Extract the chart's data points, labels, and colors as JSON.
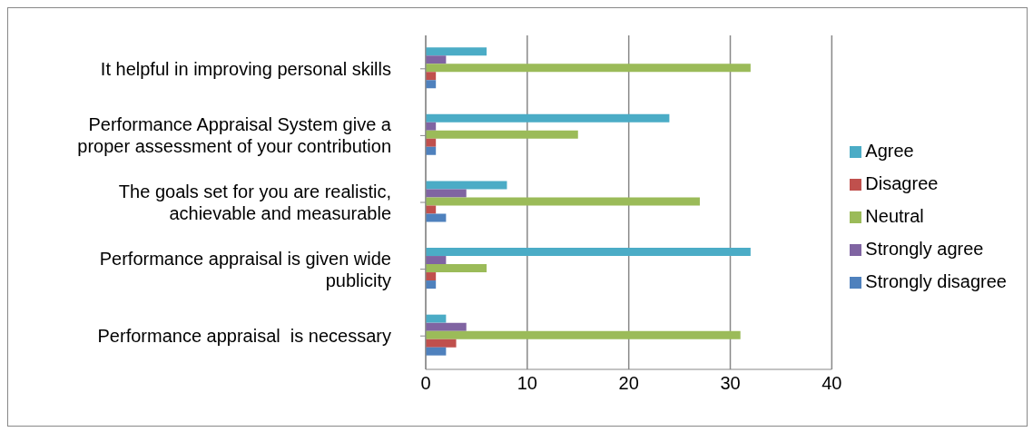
{
  "chart_data": {
    "type": "bar",
    "orientation": "horizontal",
    "categories": [
      "It helpful in improving personal skills",
      "Performance Appraisal System give a proper assessment of your contribution",
      "The goals set for you are realistic, achievable and measurable",
      "Performance appraisal is given wide publicity",
      "Performance appraisal  is necessary"
    ],
    "series": [
      {
        "name": "Agree",
        "color": "#4bacc6",
        "values": [
          6,
          24,
          8,
          32,
          2
        ]
      },
      {
        "name": "Strongly agree",
        "color": "#8064a2",
        "values": [
          2,
          1,
          4,
          2,
          4
        ]
      },
      {
        "name": "Neutral",
        "color": "#9bbb59",
        "values": [
          32,
          15,
          27,
          6,
          31
        ]
      },
      {
        "name": "Disagree",
        "color": "#c0504d",
        "values": [
          1,
          1,
          1,
          1,
          3
        ]
      },
      {
        "name": "Strongly disagree",
        "color": "#4f81bd",
        "values": [
          1,
          1,
          2,
          1,
          2
        ]
      }
    ],
    "xlim": [
      0,
      40
    ],
    "xticks": [
      0,
      10,
      20,
      30,
      40
    ],
    "grid": "x",
    "legend": "right"
  }
}
